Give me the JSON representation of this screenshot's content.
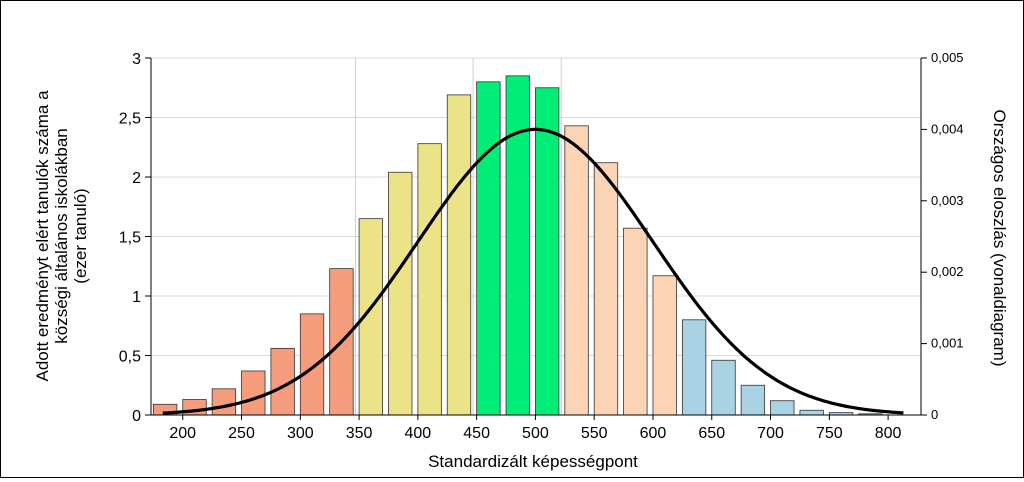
{
  "chart_data": {
    "type": "bar",
    "xlabel": "Standardizált képességpont",
    "ylabel_left": [
      "Adott eredményt elért tanulók száma a",
      "községi általános iskolákban",
      "(ezer tanuló)"
    ],
    "ylabel_right": "Országos eloszlás (vonaldiagram)",
    "x_ticks": [
      "200",
      "250",
      "300",
      "350",
      "400",
      "450",
      "500",
      "550",
      "600",
      "650",
      "700",
      "750",
      "800"
    ],
    "y_ticks_left": [
      "0",
      "0,5",
      "1",
      "1,5",
      "2",
      "2,5",
      "3"
    ],
    "y_ticks_right": [
      "0",
      "0,001",
      "0,002",
      "0,003",
      "0,004",
      "0,005"
    ],
    "ylim_left": [
      0,
      3
    ],
    "ylim_right": [
      0,
      0.005
    ],
    "xlim": [
      173,
      828
    ],
    "grid": "horizontal",
    "bar_width": 20,
    "bars": [
      {
        "x": 185,
        "value": 0.09,
        "color": "#f59c7c"
      },
      {
        "x": 210,
        "value": 0.13,
        "color": "#f59c7c"
      },
      {
        "x": 235,
        "value": 0.22,
        "color": "#f59c7c"
      },
      {
        "x": 260,
        "value": 0.37,
        "color": "#f59c7c"
      },
      {
        "x": 285,
        "value": 0.56,
        "color": "#f59c7c"
      },
      {
        "x": 310,
        "value": 0.85,
        "color": "#f59c7c"
      },
      {
        "x": 335,
        "value": 1.23,
        "color": "#f59c7c"
      },
      {
        "x": 360,
        "value": 1.65,
        "color": "#ece389"
      },
      {
        "x": 385,
        "value": 2.04,
        "color": "#ece389"
      },
      {
        "x": 410,
        "value": 2.28,
        "color": "#ece389"
      },
      {
        "x": 435,
        "value": 2.69,
        "color": "#ece389"
      },
      {
        "x": 460,
        "value": 2.8,
        "color": "#00ee77"
      },
      {
        "x": 485,
        "value": 2.85,
        "color": "#00ee77"
      },
      {
        "x": 510,
        "value": 2.75,
        "color": "#00ee77"
      },
      {
        "x": 535,
        "value": 2.43,
        "color": "#fad4b5"
      },
      {
        "x": 560,
        "value": 2.12,
        "color": "#fad4b5"
      },
      {
        "x": 585,
        "value": 1.57,
        "color": "#fad4b5"
      },
      {
        "x": 610,
        "value": 1.17,
        "color": "#fad4b5"
      },
      {
        "x": 635,
        "value": 0.8,
        "color": "#a9d3e4"
      },
      {
        "x": 660,
        "value": 0.46,
        "color": "#a9d3e4"
      },
      {
        "x": 685,
        "value": 0.25,
        "color": "#a9d3e4"
      },
      {
        "x": 710,
        "value": 0.12,
        "color": "#a9d3e4"
      },
      {
        "x": 735,
        "value": 0.04,
        "color": "#a9d3e4"
      },
      {
        "x": 760,
        "value": 0.02,
        "color": "#a9d3e4"
      },
      {
        "x": 785,
        "value": 0.01,
        "color": "#a9d3e4"
      }
    ],
    "line": {
      "name": "Országos eloszlás",
      "axis": "right",
      "distribution": "normal",
      "mean": 500,
      "sd": 100,
      "x_range": [
        183,
        813
      ],
      "peak": 0.004,
      "color": "#000000"
    },
    "split_lines_x": [
      347,
      447,
      522
    ]
  }
}
